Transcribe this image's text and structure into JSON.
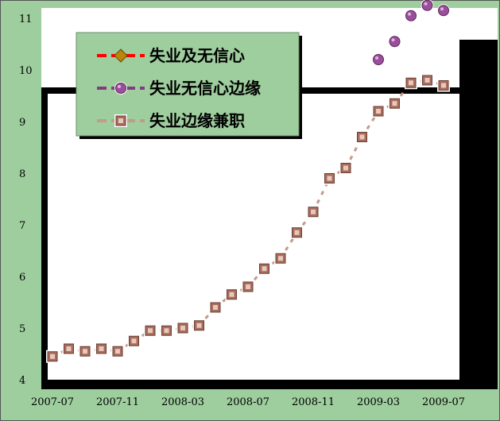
{
  "chart_data": {
    "type": "line",
    "title": "",
    "xlabel": "",
    "ylabel": "",
    "ylim": [
      4,
      11
    ],
    "y_ticks": [
      "4",
      "5",
      "6",
      "7",
      "8",
      "9",
      "10",
      "11"
    ],
    "x_tick_labels": [
      "2007-07",
      "2007-11",
      "2008-03",
      "2008-07",
      "2008-11",
      "2009-03",
      "2009-07"
    ],
    "x": [
      "2007-07",
      "2007-08",
      "2007-09",
      "2007-10",
      "2007-11",
      "2007-12",
      "2008-01",
      "2008-02",
      "2008-03",
      "2008-04",
      "2008-05",
      "2008-06",
      "2008-07",
      "2008-08",
      "2008-09",
      "2008-10",
      "2008-11",
      "2008-12",
      "2009-01",
      "2009-02",
      "2009-03",
      "2009-04",
      "2009-05",
      "2009-06",
      "2009-07",
      "2009-08"
    ],
    "legend_position": "top-left",
    "colors": {
      "background": "#9ecd9e",
      "legend_bg": "#9ecd9e",
      "series1_line": "#ff0000",
      "series1_marker": "#b8860b",
      "series2_line": "#7f3f7f",
      "series2_marker": "#9b4f9b",
      "series3_line": "#c49a8a",
      "series3_marker": "#a86c5c"
    },
    "series": [
      {
        "name": "失业及无信心",
        "line_style": "dashed",
        "values": [
          null,
          null,
          null,
          null,
          null,
          null,
          null,
          null,
          null,
          null,
          null,
          null,
          null,
          null,
          null,
          null,
          null,
          null,
          null,
          null,
          null,
          null,
          null,
          null,
          null,
          null
        ]
      },
      {
        "name": "失业无信心边缘",
        "line_style": "dashed",
        "values": [
          null,
          null,
          null,
          null,
          null,
          null,
          null,
          null,
          null,
          null,
          null,
          null,
          null,
          null,
          null,
          null,
          null,
          null,
          null,
          null,
          10.0,
          10.35,
          10.85,
          11.05,
          10.95,
          null
        ]
      },
      {
        "name": "失业边缘兼职",
        "line_style": "dashed",
        "values": [
          4.25,
          4.4,
          4.35,
          4.4,
          4.35,
          4.55,
          4.75,
          4.75,
          4.8,
          4.85,
          5.2,
          5.45,
          5.6,
          5.95,
          6.15,
          6.65,
          7.05,
          7.7,
          7.9,
          8.5,
          9.0,
          9.15,
          9.55,
          9.6,
          9.5,
          null
        ]
      }
    ]
  }
}
